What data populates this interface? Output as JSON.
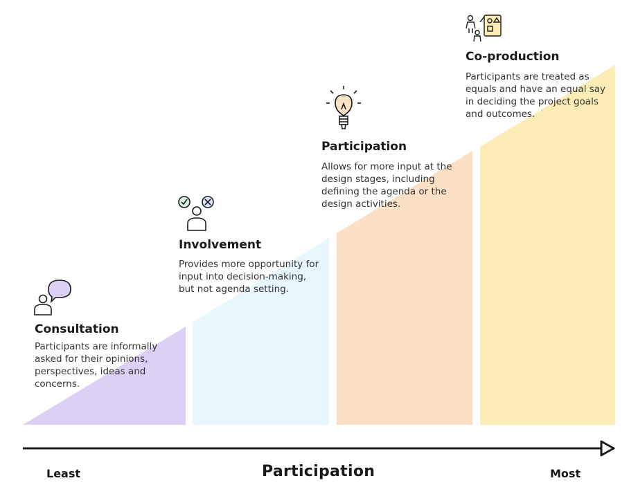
{
  "stages": [
    {
      "title": "Consultation",
      "description": "Participants are informally asked for their opinions, perspectives, ideas and concerns.",
      "icon": "person-speech-bubble-icon",
      "color": "#dcd0f7"
    },
    {
      "title": "Involvement",
      "description": "Provides more opportunity for input into decision-making, but not agenda setting.",
      "icon": "person-check-cross-icon",
      "color": "#e7f7fd"
    },
    {
      "title": "Participation",
      "description": "Allows for more input at the design stages, including defining the agenda or the design activities.",
      "icon": "lightbulb-icon",
      "color": "#fbe0c6"
    },
    {
      "title": "Co-production",
      "description": "Participants are treated as equals and have an equal say in deciding the project goals and outcomes.",
      "icon": "people-whiteboard-icon",
      "color": "#fcecb6"
    }
  ],
  "axis": {
    "title": "Participation",
    "left_label": "Least",
    "right_label": "Most"
  }
}
